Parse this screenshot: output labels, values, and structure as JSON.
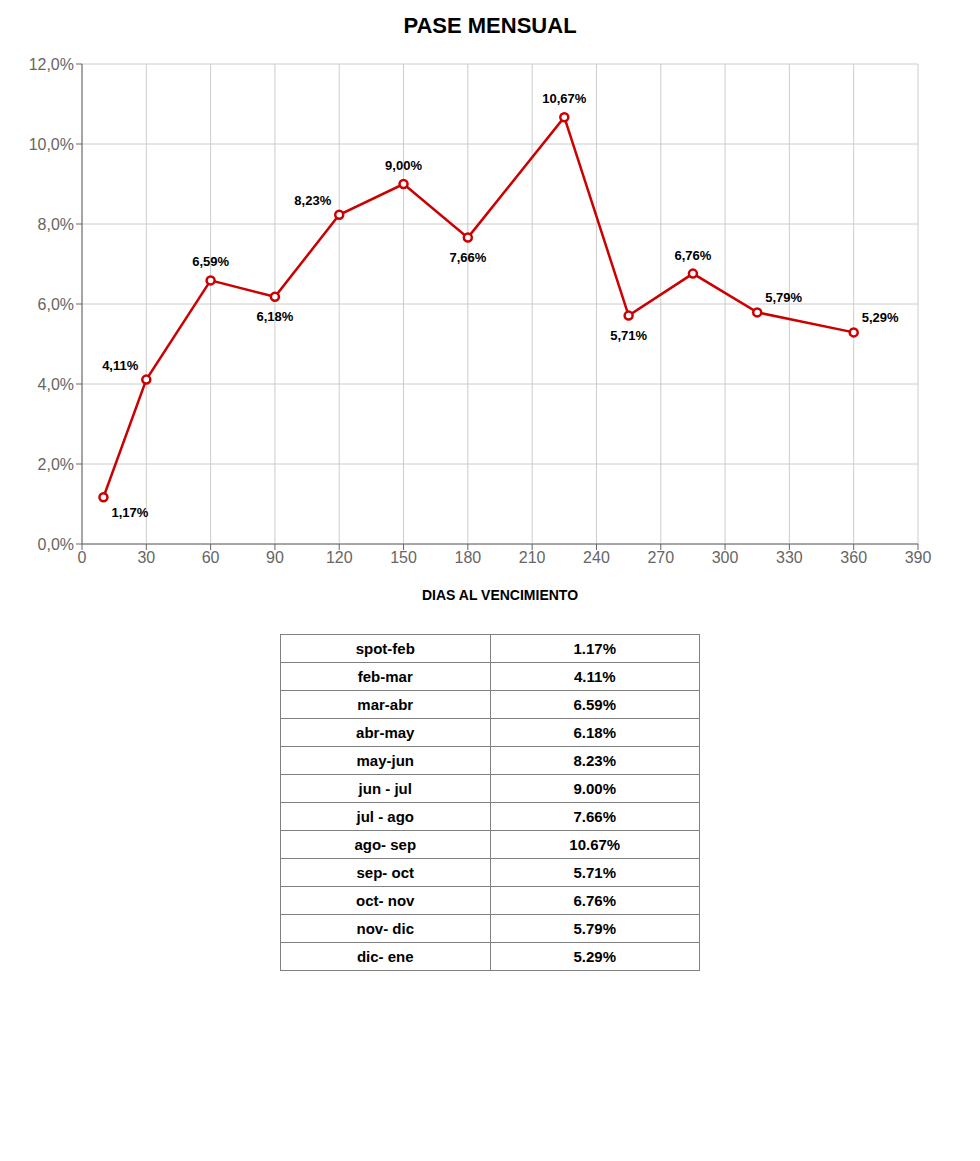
{
  "chart_data": [
    {
      "type": "line",
      "title": "PASE MENSUAL",
      "x_label": "DIAS AL VENCIMIENTO",
      "x": [
        10,
        30,
        60,
        90,
        120,
        150,
        180,
        225,
        255,
        285,
        315,
        360
      ],
      "values": [
        1.17,
        4.11,
        6.59,
        6.18,
        8.23,
        9.0,
        7.66,
        10.67,
        5.71,
        6.76,
        5.79,
        5.29
      ],
      "value_labels": [
        "1,17%",
        "4,11%",
        "6,59%",
        "6,18%",
        "8,23%",
        "9,00%",
        "7,66%",
        "10,67%",
        "5,71%",
        "6,76%",
        "5,79%",
        "5,29%"
      ],
      "data_labels": true,
      "color": "#CC0000",
      "marker": "circle",
      "xlim": [
        0,
        390
      ],
      "xticks": [
        0,
        30,
        60,
        90,
        120,
        150,
        180,
        210,
        240,
        270,
        300,
        330,
        360,
        390
      ],
      "ylim": [
        0.0,
        12.0
      ],
      "yticks": [
        {
          "value": 0.0,
          "label": "0,0%"
        },
        {
          "value": 2.0,
          "label": "2,0%"
        },
        {
          "value": 4.0,
          "label": "4,0%"
        },
        {
          "value": 6.0,
          "label": "6,0%"
        },
        {
          "value": 8.0,
          "label": "8,0%"
        },
        {
          "value": 10.0,
          "label": "10,0%"
        },
        {
          "value": 12.0,
          "label": "12,0%"
        }
      ],
      "grid": true
    },
    {
      "type": "table",
      "categories": [
        "spot-feb",
        "feb-mar",
        "mar-abr",
        "abr-may",
        "may-jun",
        "jun - jul",
        "jul - ago",
        "ago- sep",
        "sep- oct",
        "oct- nov",
        "nov- dic",
        "dic- ene"
      ],
      "values": [
        1.17,
        4.11,
        6.59,
        6.18,
        8.23,
        9.0,
        7.66,
        10.67,
        5.71,
        6.76,
        5.79,
        5.29
      ],
      "value_labels": [
        "1.17%",
        "4.11%",
        "6.59%",
        "6.18%",
        "8.23%",
        "9.00%",
        "7.66%",
        "10.67%",
        "5.71%",
        "6.76%",
        "5.79%",
        "5.29%"
      ]
    }
  ]
}
